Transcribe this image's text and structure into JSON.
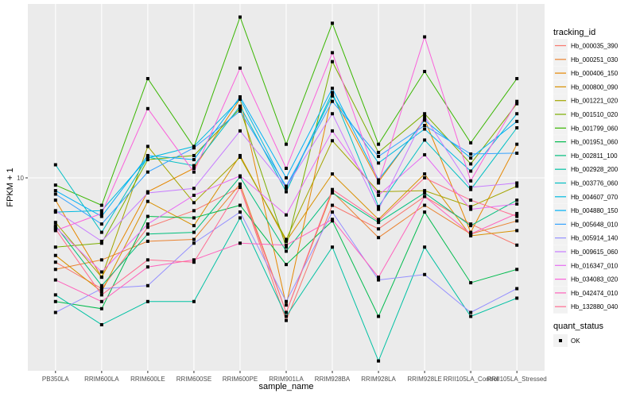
{
  "chart_data": {
    "type": "line",
    "title": "",
    "xlabel": "sample_name",
    "ylabel": "FPKM + 1",
    "y_scale": "log10",
    "y_ticks": [
      10
    ],
    "y_tick_labels": [
      "10"
    ],
    "ylim": [
      1.45,
      57
    ],
    "grid": true,
    "legend_position": "right",
    "categories": [
      "PB350LA",
      "RRIM600LA",
      "RRIM600LE",
      "RRIM600SE",
      "RRIM600PE",
      "RRIM901LA",
      "RRIM928BA",
      "RRIM928LA",
      "RRIM928LE",
      "RRII105LA_Control",
      "RRII105LA_Stressed"
    ],
    "legend": {
      "color_title": "tracking_id",
      "shape_title": "quant_status",
      "shape_entries": [
        "OK"
      ]
    },
    "series": [
      {
        "name": "Hb_000035_390",
        "color": "#F8766D",
        "values": [
          4.3,
          3.3,
          6.1,
          7.2,
          9.1,
          2.4,
          7.6,
          6.0,
          8.3,
          6.3,
          5.1
        ]
      },
      {
        "name": "Hb_000251_030",
        "color": "#EA8331",
        "values": [
          4.0,
          4.4,
          5.3,
          5.4,
          9.4,
          2.6,
          8.7,
          5.5,
          7.6,
          5.7,
          6.5
        ]
      },
      {
        "name": "Hb_000406_150",
        "color": "#E58700",
        "values": [
          8.0,
          3.7,
          8.7,
          11.0,
          22.0,
          2.8,
          23.0,
          9.6,
          18.0,
          5.8,
          14.0
        ]
      },
      {
        "name": "Hb_000800_090",
        "color": "#D89000",
        "values": [
          4.6,
          3.2,
          7.9,
          6.2,
          12.5,
          5.3,
          10.4,
          6.6,
          10.4,
          5.6,
          5.9
        ]
      },
      {
        "name": "Hb_001221_020",
        "color": "#A3A500",
        "values": [
          6.4,
          3.7,
          13.7,
          7.8,
          12.3,
          5.4,
          14.5,
          8.7,
          8.8,
          7.5,
          9.2
        ]
      },
      {
        "name": "Hb_001510_020",
        "color": "#7CAE00",
        "values": [
          5.0,
          5.2,
          12.0,
          12.5,
          20.0,
          5.0,
          32.0,
          12.9,
          19.0,
          11.5,
          21.0
        ]
      },
      {
        "name": "Hb_001799_060",
        "color": "#39B600",
        "values": [
          9.3,
          7.6,
          27.0,
          13.6,
          50.0,
          14.0,
          47.0,
          14.0,
          29.0,
          14.2,
          27.0
        ]
      },
      {
        "name": "Hb_001951_060",
        "color": "#00BB4E",
        "values": [
          2.9,
          2.7,
          6.8,
          6.7,
          7.6,
          4.2,
          6.5,
          2.5,
          7.1,
          3.5,
          4.0
        ]
      },
      {
        "name": "Hb_002811_100",
        "color": "#00BF7D",
        "values": [
          6.2,
          3.4,
          5.7,
          5.8,
          10.1,
          4.8,
          8.6,
          6.4,
          8.6,
          6.2,
          8.0
        ]
      },
      {
        "name": "Hb_002928_200",
        "color": "#00C1A3",
        "values": [
          3.1,
          2.3,
          2.9,
          2.9,
          6.7,
          2.5,
          5.0,
          1.6,
          5.0,
          2.5,
          3.0
        ]
      },
      {
        "name": "Hb_003776_060",
        "color": "#00BFC4",
        "values": [
          11.4,
          5.8,
          12.3,
          11.3,
          20.5,
          8.7,
          23.5,
          7.5,
          14.6,
          8.9,
          16.5
        ]
      },
      {
        "name": "Hb_004607_070",
        "color": "#00BAE0",
        "values": [
          7.1,
          7.2,
          12.2,
          13.7,
          22.0,
          9.0,
          22.7,
          11.6,
          16.3,
          10.7,
          19.0
        ]
      },
      {
        "name": "Hb_004880_150",
        "color": "#00B0F6",
        "values": [
          8.8,
          6.8,
          12.5,
          12.0,
          22.5,
          10.0,
          24.5,
          9.8,
          17.8,
          12.2,
          17.6
        ]
      },
      {
        "name": "Hb_005648_010",
        "color": "#35A2FF",
        "values": [
          8.5,
          6.3,
          10.6,
          13.5,
          19.5,
          9.2,
          21.5,
          12.4,
          16.9,
          12.7,
          12.8
        ]
      },
      {
        "name": "Hb_005914_140",
        "color": "#9590FF",
        "values": [
          2.6,
          3.3,
          3.4,
          5.2,
          7.1,
          2.9,
          7.1,
          3.6,
          3.8,
          2.6,
          3.3
        ]
      },
      {
        "name": "Hb_009615_060",
        "color": "#C77CFF",
        "values": [
          7.2,
          5.3,
          8.6,
          9.0,
          16.0,
          9.1,
          19.0,
          7.3,
          18.5,
          9.1,
          9.5
        ]
      },
      {
        "name": "Hb_016347_010",
        "color": "#E76BF3",
        "values": [
          6.1,
          3.9,
          6.3,
          8.4,
          10.2,
          6.9,
          16.0,
          8.4,
          12.6,
          7.3,
          7.7
        ]
      },
      {
        "name": "Hb_034083_020",
        "color": "#FA62DB",
        "values": [
          5.9,
          7.0,
          20.0,
          10.6,
          30.0,
          11.0,
          35.0,
          9.5,
          41.0,
          9.7,
          21.5
        ]
      },
      {
        "name": "Hb_042474_010",
        "color": "#FF62BC",
        "values": [
          3.6,
          2.9,
          4.1,
          4.4,
          5.2,
          5.1,
          6.6,
          3.7,
          8.3,
          5.7,
          7.0
        ]
      },
      {
        "name": "Hb_132880_040",
        "color": "#FF6C91",
        "values": [
          6.0,
          3.1,
          4.4,
          4.3,
          9.1,
          2.6,
          8.9,
          6.5,
          10.0,
          8.0,
          6.8
        ]
      }
    ]
  }
}
